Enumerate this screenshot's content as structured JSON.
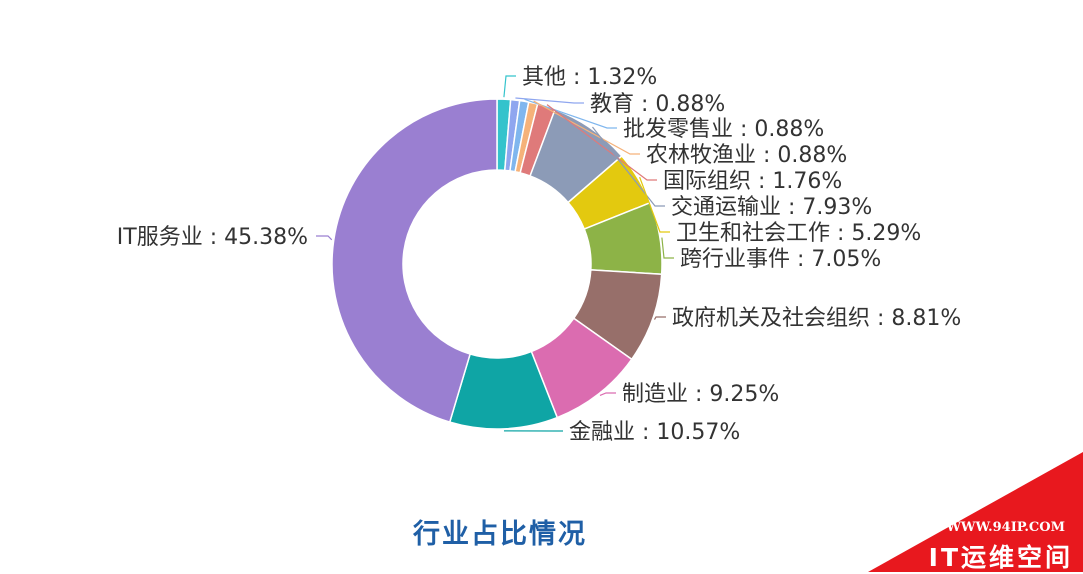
{
  "chart_data": {
    "type": "pie",
    "donut": true,
    "title": "行业占比情况",
    "slices": [
      {
        "label": "其他",
        "value": 1.32,
        "display": "其他 : 1.32%",
        "color": "#34c3cc"
      },
      {
        "label": "教育",
        "value": 0.88,
        "display": "教育 : 0.88%",
        "color": "#8fa6ef"
      },
      {
        "label": "批发零售业",
        "value": 0.88,
        "display": "批发零售业 : 0.88%",
        "color": "#7fb6ee"
      },
      {
        "label": "农林牧渔业",
        "value": 0.88,
        "display": "农林牧渔业 : 0.88%",
        "color": "#f5b27a"
      },
      {
        "label": "国际组织",
        "value": 1.76,
        "display": "国际组织 : 1.76%",
        "color": "#df7a7a"
      },
      {
        "label": "交通运输业",
        "value": 7.93,
        "display": "交通运输业 : 7.93%",
        "color": "#8c9bb7"
      },
      {
        "label": "卫生和社会工作",
        "value": 5.29,
        "display": "卫生和社会工作 : 5.29%",
        "color": "#e3c90f"
      },
      {
        "label": "跨行业事件",
        "value": 7.05,
        "display": "跨行业事件 : 7.05%",
        "color": "#8db347"
      },
      {
        "label": "政府机关及社会组织",
        "value": 8.81,
        "display": "政府机关及社会组织 : 8.81%",
        "color": "#976f6a"
      },
      {
        "label": "制造业",
        "value": 9.25,
        "display": "制造业 : 9.25%",
        "color": "#db6cb0"
      },
      {
        "label": "金融业",
        "value": 10.57,
        "display": "金融业 : 10.57%",
        "color": "#0fa5a5"
      },
      {
        "label": "IT服务业",
        "value": 45.38,
        "display": "IT服务业 : 45.38%",
        "color": "#9a7fd1"
      }
    ]
  },
  "watermark": {
    "url": "WWW.94IP.COM",
    "name": "IT运维空间",
    "color": "#e8181e"
  }
}
